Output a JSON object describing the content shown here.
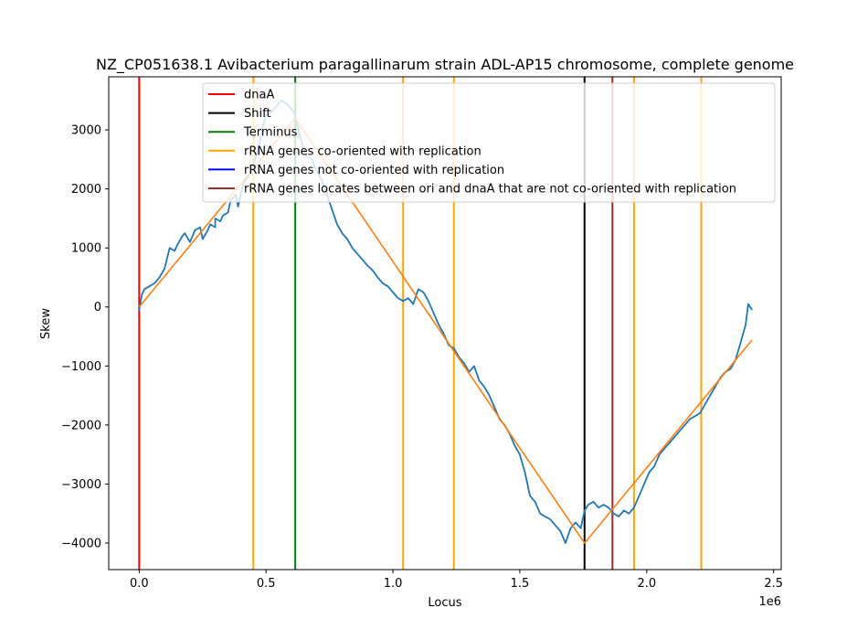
{
  "chart_data": {
    "type": "line",
    "title": "NZ_CP051638.1 Avibacterium paragallinarum strain ADL-AP15 chromosome, complete genome",
    "xlabel": "Locus",
    "ylabel": "Skew",
    "x_offset_label": "1e6",
    "xlim": [
      -0.12,
      2.53
    ],
    "ylim": [
      -4450,
      3900
    ],
    "x_ticks": [
      0.0,
      0.5,
      1.0,
      1.5,
      2.0,
      2.5
    ],
    "x_tick_labels": [
      "0.0",
      "0.5",
      "1.0",
      "1.5",
      "2.0",
      "2.5"
    ],
    "y_ticks": [
      -4000,
      -3000,
      -2000,
      -1000,
      0,
      1000,
      2000,
      3000
    ],
    "y_tick_labels": [
      "−4000",
      "−3000",
      "−2000",
      "−1000",
      "0",
      "1000",
      "2000",
      "3000"
    ],
    "grid": false,
    "legend_position": "upper-center",
    "colors": {
      "skew": "#1f77b4",
      "fit": "#ff7f0e",
      "dnaA": "#ff0000",
      "shift": "#000000",
      "terminus": "#008000",
      "rrna_co": "#ffa500",
      "rrna_not_co": "#0000ff",
      "rrna_between": "#a52a2a"
    },
    "legend": [
      {
        "label": "dnaA",
        "color": "#ff0000"
      },
      {
        "label": "Shift",
        "color": "#000000"
      },
      {
        "label": "Terminus",
        "color": "#008000"
      },
      {
        "label": "rRNA genes co-oriented with replication",
        "color": "#ffa500"
      },
      {
        "label": "rRNA genes not co-oriented with replication",
        "color": "#0000ff"
      },
      {
        "label": "rRNA genes locates between ori and dnaA that are not co-oriented with replication",
        "color": "#a52a2a"
      }
    ],
    "vlines": [
      {
        "kind": "dnaA",
        "x": 0.0
      },
      {
        "kind": "rrna_co",
        "x": 0.45
      },
      {
        "kind": "terminus",
        "x": 0.615
      },
      {
        "kind": "rrna_co",
        "x": 1.04
      },
      {
        "kind": "rrna_co",
        "x": 1.24
      },
      {
        "kind": "shift",
        "x": 1.755
      },
      {
        "kind": "rrna_between",
        "x": 1.865
      },
      {
        "kind": "rrna_co",
        "x": 1.95
      },
      {
        "kind": "rrna_co",
        "x": 2.215
      }
    ],
    "series": [
      {
        "key": "skew",
        "x": [
          0.0,
          0.01,
          0.02,
          0.04,
          0.06,
          0.08,
          0.1,
          0.12,
          0.14,
          0.15,
          0.17,
          0.18,
          0.2,
          0.21,
          0.22,
          0.24,
          0.25,
          0.27,
          0.28,
          0.3,
          0.3,
          0.32,
          0.33,
          0.35,
          0.36,
          0.38,
          0.39,
          0.41,
          0.43,
          0.45,
          0.47,
          0.49,
          0.5,
          0.52,
          0.54,
          0.56,
          0.58,
          0.6,
          0.61,
          0.62,
          0.63,
          0.64,
          0.66,
          0.68,
          0.7,
          0.72,
          0.74,
          0.76,
          0.78,
          0.8,
          0.82,
          0.84,
          0.86,
          0.88,
          0.9,
          0.92,
          0.94,
          0.96,
          0.98,
          1.0,
          1.02,
          1.04,
          1.06,
          1.08,
          1.1,
          1.12,
          1.14,
          1.16,
          1.18,
          1.2,
          1.22,
          1.24,
          1.26,
          1.28,
          1.3,
          1.32,
          1.34,
          1.36,
          1.38,
          1.4,
          1.42,
          1.44,
          1.46,
          1.48,
          1.5,
          1.52,
          1.54,
          1.56,
          1.58,
          1.6,
          1.62,
          1.64,
          1.66,
          1.68,
          1.7,
          1.72,
          1.74,
          1.755,
          1.77,
          1.79,
          1.81,
          1.83,
          1.85,
          1.87,
          1.89,
          1.91,
          1.93,
          1.95,
          1.97,
          1.99,
          2.01,
          2.03,
          2.05,
          2.07,
          2.09,
          2.11,
          2.13,
          2.15,
          2.17,
          2.19,
          2.21,
          2.23,
          2.25,
          2.27,
          2.29,
          2.31,
          2.33,
          2.35,
          2.37,
          2.39,
          2.4,
          2.415
        ],
        "y": [
          -60,
          200,
          300,
          350,
          400,
          500,
          650,
          1000,
          950,
          1050,
          1200,
          1250,
          1100,
          1200,
          1300,
          1350,
          1150,
          1300,
          1400,
          1350,
          1500,
          1450,
          1550,
          1600,
          1800,
          1900,
          1700,
          2100,
          2200,
          2400,
          2700,
          3100,
          3250,
          3300,
          3400,
          3500,
          3450,
          3350,
          3300,
          3150,
          2950,
          2800,
          2550,
          2500,
          2300,
          2150,
          1900,
          1650,
          1400,
          1250,
          1150,
          1000,
          900,
          800,
          700,
          620,
          500,
          400,
          350,
          250,
          150,
          100,
          150,
          50,
          300,
          250,
          100,
          -100,
          -300,
          -450,
          -650,
          -700,
          -850,
          -950,
          -1100,
          -1000,
          -1250,
          -1350,
          -1500,
          -1700,
          -1900,
          -2000,
          -2150,
          -2350,
          -2500,
          -2800,
          -3200,
          -3300,
          -3500,
          -3550,
          -3600,
          -3700,
          -3800,
          -4000,
          -3750,
          -3650,
          -3750,
          -3450,
          -3350,
          -3300,
          -3400,
          -3350,
          -3400,
          -3500,
          -3550,
          -3450,
          -3500,
          -3400,
          -3200,
          -3000,
          -2800,
          -2700,
          -2500,
          -2400,
          -2300,
          -2200,
          -2100,
          -2000,
          -1900,
          -1850,
          -1800,
          -1650,
          -1500,
          -1350,
          -1200,
          -1100,
          -1050,
          -900,
          -600,
          -300,
          50,
          -50
        ]
      },
      {
        "key": "fit",
        "x": [
          0.0,
          0.615,
          1.755,
          2.415
        ],
        "y": [
          0,
          3200,
          -4000,
          -560
        ]
      }
    ]
  }
}
